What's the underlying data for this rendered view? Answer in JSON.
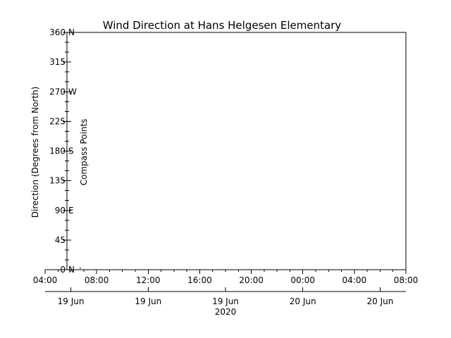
{
  "chart_data": {
    "type": "scatter",
    "title": "Wind Direction at Hans Helgesen Elementary",
    "ylabel": "Direction (Degrees from North)",
    "ylabel_right": "Compass Points",
    "ylim": [
      0,
      360
    ],
    "y_ticks": [
      "0",
      "45",
      "90",
      "135",
      "180",
      "225",
      "270",
      "315",
      "360"
    ],
    "compass_ticks": [
      {
        "value": 0,
        "label": "N"
      },
      {
        "value": 90,
        "label": "E"
      },
      {
        "value": 180,
        "label": "S"
      },
      {
        "value": 270,
        "label": "W"
      },
      {
        "value": 360,
        "label": "N"
      }
    ],
    "x_ticks": [
      "04:00",
      "08:00",
      "12:00",
      "16:00",
      "20:00",
      "00:00",
      "04:00",
      "08:00"
    ],
    "x_date_ticks": [
      "19 Jun",
      "19 Jun",
      "19 Jun",
      "20 Jun",
      "20 Jun"
    ],
    "year_label": "2020",
    "series": [
      {
        "x": [
          "19 Jun 06:15"
        ],
        "values": [
          0
        ]
      }
    ],
    "grid": false,
    "colors": {
      "axes": "#000000",
      "background": "#ffffff",
      "points": "#000000"
    }
  }
}
